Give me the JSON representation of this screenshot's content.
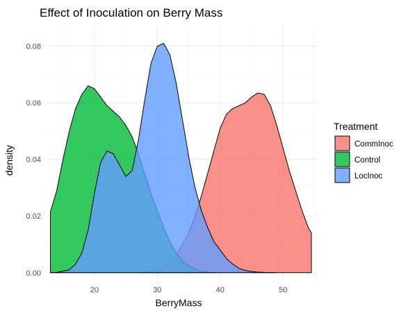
{
  "chart_data": {
    "type": "area",
    "title": "Effect of Inoculation on Berry Mass",
    "xlabel": "BerryMass",
    "ylabel": "density",
    "xlim": [
      12.5,
      55.5
    ],
    "ylim": [
      -0.003,
      0.087
    ],
    "x_ticks": [
      20,
      30,
      40,
      50
    ],
    "y_ticks": [
      0.0,
      0.02,
      0.04,
      0.06,
      0.08
    ],
    "y_tick_labels": [
      "0.00",
      "0.02",
      "0.04",
      "0.06",
      "0.08"
    ],
    "grid": true,
    "legend": {
      "title": "Treatment",
      "position": "right"
    },
    "series": [
      {
        "name": "CommInoc",
        "color": "#F8766D",
        "x": [
          27,
          29,
          31,
          33,
          35,
          36,
          37,
          38,
          39,
          40,
          41,
          42,
          43,
          44,
          45,
          46,
          47,
          48,
          49,
          50,
          51,
          52,
          53,
          54,
          54.5
        ],
        "values": [
          0.0,
          0.0005,
          0.002,
          0.006,
          0.014,
          0.02,
          0.027,
          0.035,
          0.043,
          0.051,
          0.056,
          0.058,
          0.059,
          0.06,
          0.062,
          0.0635,
          0.063,
          0.059,
          0.052,
          0.044,
          0.036,
          0.029,
          0.022,
          0.016,
          0.014
        ]
      },
      {
        "name": "Control",
        "color": "#00BA38",
        "x": [
          13,
          14,
          15,
          16,
          17,
          18,
          19,
          20,
          21,
          22,
          23,
          24,
          25,
          26,
          27,
          28,
          29,
          30,
          31,
          32,
          33,
          34,
          35,
          36,
          37,
          38,
          39
        ],
        "values": [
          0.0215,
          0.029,
          0.04,
          0.05,
          0.058,
          0.063,
          0.066,
          0.065,
          0.062,
          0.059,
          0.057,
          0.055,
          0.052,
          0.048,
          0.042,
          0.035,
          0.028,
          0.022,
          0.016,
          0.011,
          0.007,
          0.004,
          0.0025,
          0.0012,
          0.0005,
          0.0002,
          0.0
        ]
      },
      {
        "name": "LocInoc",
        "color": "#619CFF",
        "x": [
          13,
          14,
          16,
          17,
          18,
          19,
          20,
          21,
          22,
          23,
          24,
          25,
          26,
          27,
          28,
          29,
          30,
          31,
          32,
          33,
          34,
          35,
          36,
          37,
          38,
          39,
          40,
          41,
          42,
          43,
          44,
          45,
          46,
          47,
          48,
          49
        ],
        "values": [
          0.0,
          0.0001,
          0.001,
          0.003,
          0.007,
          0.015,
          0.028,
          0.039,
          0.043,
          0.042,
          0.038,
          0.034,
          0.036,
          0.047,
          0.061,
          0.074,
          0.08,
          0.081,
          0.077,
          0.067,
          0.054,
          0.041,
          0.03,
          0.022,
          0.016,
          0.011,
          0.008,
          0.005,
          0.003,
          0.0015,
          0.0008,
          0.0004,
          0.0002,
          0.0001,
          5e-05,
          0.0
        ]
      }
    ]
  }
}
